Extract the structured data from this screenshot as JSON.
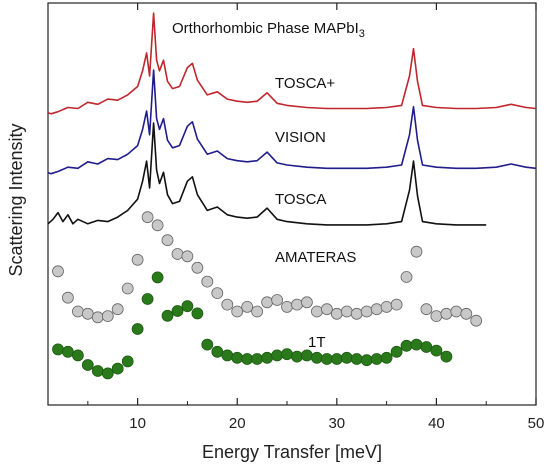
{
  "chart_data": {
    "type": "line",
    "title": "Orthorhombic  Phase MAPbI",
    "title_subscript": "3",
    "xlabel": "Energy Transfer [meV]",
    "ylabel": "Scattering Intensity",
    "xlim": [
      1,
      50
    ],
    "xticks": [
      10,
      20,
      30,
      40,
      50
    ],
    "grid": false,
    "legend": "none",
    "series": [
      {
        "name": "TOSCA+",
        "style": "line",
        "color": "#c0262d",
        "points": [
          [
            1,
            0.05
          ],
          [
            1.3,
            0.04
          ],
          [
            2,
            0.06
          ],
          [
            3,
            0.1
          ],
          [
            4,
            0.09
          ],
          [
            5,
            0.15
          ],
          [
            6,
            0.13
          ],
          [
            7,
            0.18
          ],
          [
            8,
            0.17
          ],
          [
            9,
            0.22
          ],
          [
            10,
            0.3
          ],
          [
            10.5,
            0.45
          ],
          [
            10.9,
            0.62
          ],
          [
            11.2,
            0.4
          ],
          [
            11.6,
            1.0
          ],
          [
            11.9,
            0.55
          ],
          [
            12.2,
            0.45
          ],
          [
            12.6,
            0.55
          ],
          [
            13,
            0.35
          ],
          [
            13.5,
            0.28
          ],
          [
            14.2,
            0.3
          ],
          [
            15,
            0.48
          ],
          [
            15.5,
            0.52
          ],
          [
            16,
            0.36
          ],
          [
            17,
            0.22
          ],
          [
            18,
            0.25
          ],
          [
            19,
            0.18
          ],
          [
            20,
            0.16
          ],
          [
            21,
            0.15
          ],
          [
            22,
            0.16
          ],
          [
            23,
            0.24
          ],
          [
            24,
            0.14
          ],
          [
            25,
            0.12
          ],
          [
            27,
            0.1
          ],
          [
            29,
            0.09
          ],
          [
            31,
            0.09
          ],
          [
            33,
            0.09
          ],
          [
            35,
            0.1
          ],
          [
            36.5,
            0.12
          ],
          [
            37.3,
            0.4
          ],
          [
            37.7,
            0.66
          ],
          [
            38.1,
            0.35
          ],
          [
            38.6,
            0.12
          ],
          [
            40,
            0.1
          ],
          [
            42,
            0.09
          ],
          [
            44,
            0.09
          ],
          [
            46,
            0.1
          ],
          [
            47.5,
            0.13
          ],
          [
            49,
            0.1
          ],
          [
            50,
            0.09
          ]
        ]
      },
      {
        "name": "VISION",
        "style": "line",
        "color": "#1f1d8a",
        "points": [
          [
            1,
            0.05
          ],
          [
            1.3,
            0.04
          ],
          [
            2,
            0.06
          ],
          [
            3,
            0.1
          ],
          [
            4,
            0.09
          ],
          [
            5,
            0.15
          ],
          [
            6,
            0.13
          ],
          [
            7,
            0.18
          ],
          [
            8,
            0.17
          ],
          [
            9,
            0.22
          ],
          [
            10,
            0.3
          ],
          [
            10.5,
            0.45
          ],
          [
            10.9,
            0.62
          ],
          [
            11.2,
            0.4
          ],
          [
            11.6,
            1.0
          ],
          [
            11.9,
            0.55
          ],
          [
            12.2,
            0.45
          ],
          [
            12.6,
            0.55
          ],
          [
            13,
            0.35
          ],
          [
            13.5,
            0.28
          ],
          [
            14.2,
            0.3
          ],
          [
            15,
            0.48
          ],
          [
            15.5,
            0.52
          ],
          [
            16,
            0.36
          ],
          [
            17,
            0.22
          ],
          [
            18,
            0.25
          ],
          [
            19,
            0.18
          ],
          [
            20,
            0.16
          ],
          [
            21,
            0.15
          ],
          [
            22,
            0.16
          ],
          [
            23,
            0.24
          ],
          [
            24,
            0.14
          ],
          [
            25,
            0.12
          ],
          [
            27,
            0.1
          ],
          [
            29,
            0.09
          ],
          [
            31,
            0.09
          ],
          [
            33,
            0.09
          ],
          [
            35,
            0.1
          ],
          [
            36.5,
            0.12
          ],
          [
            37.3,
            0.4
          ],
          [
            37.7,
            0.66
          ],
          [
            38.1,
            0.35
          ],
          [
            38.6,
            0.12
          ],
          [
            40,
            0.1
          ],
          [
            42,
            0.09
          ],
          [
            44,
            0.09
          ],
          [
            46,
            0.1
          ],
          [
            47.5,
            0.13
          ],
          [
            49,
            0.1
          ],
          [
            50,
            0.09
          ]
        ]
      },
      {
        "name": "TOSCA",
        "style": "line",
        "color": "#111111",
        "points": [
          [
            1,
            0.1
          ],
          [
            1.5,
            0.14
          ],
          [
            2,
            0.2
          ],
          [
            2.5,
            0.12
          ],
          [
            3,
            0.18
          ],
          [
            3.5,
            0.1
          ],
          [
            4,
            0.14
          ],
          [
            5,
            0.1
          ],
          [
            6,
            0.13
          ],
          [
            7,
            0.12
          ],
          [
            8,
            0.16
          ],
          [
            9,
            0.22
          ],
          [
            10,
            0.32
          ],
          [
            10.5,
            0.48
          ],
          [
            10.9,
            0.66
          ],
          [
            11.2,
            0.42
          ],
          [
            11.6,
            1.0
          ],
          [
            11.9,
            0.58
          ],
          [
            12.2,
            0.46
          ],
          [
            12.6,
            0.56
          ],
          [
            13,
            0.36
          ],
          [
            13.5,
            0.28
          ],
          [
            14.2,
            0.3
          ],
          [
            15,
            0.48
          ],
          [
            15.5,
            0.52
          ],
          [
            16,
            0.36
          ],
          [
            17,
            0.22
          ],
          [
            18,
            0.25
          ],
          [
            19,
            0.18
          ],
          [
            20,
            0.16
          ],
          [
            21,
            0.15
          ],
          [
            22,
            0.16
          ],
          [
            23,
            0.24
          ],
          [
            24,
            0.14
          ],
          [
            25,
            0.12
          ],
          [
            27,
            0.1
          ],
          [
            29,
            0.09
          ],
          [
            31,
            0.09
          ],
          [
            33,
            0.09
          ],
          [
            35,
            0.1
          ],
          [
            36.5,
            0.12
          ],
          [
            37.3,
            0.4
          ],
          [
            37.7,
            0.66
          ],
          [
            38.1,
            0.35
          ],
          [
            38.6,
            0.12
          ],
          [
            40,
            0.1
          ],
          [
            42,
            0.09
          ],
          [
            44,
            0.09
          ],
          [
            45,
            0.09
          ]
        ]
      },
      {
        "name": "AMATERAS",
        "style": "markers",
        "color": "#c8c8c8",
        "points": [
          [
            2,
            0.45
          ],
          [
            3,
            0.22
          ],
          [
            4,
            0.1
          ],
          [
            5,
            0.08
          ],
          [
            6,
            0.05
          ],
          [
            7,
            0.06
          ],
          [
            8,
            0.12
          ],
          [
            9,
            0.3
          ],
          [
            10,
            0.55
          ],
          [
            11,
            0.92
          ],
          [
            12,
            0.85
          ],
          [
            13,
            0.72
          ],
          [
            14,
            0.6
          ],
          [
            15,
            0.58
          ],
          [
            16,
            0.48
          ],
          [
            17,
            0.36
          ],
          [
            18,
            0.26
          ],
          [
            19,
            0.16
          ],
          [
            20,
            0.1
          ],
          [
            21,
            0.14
          ],
          [
            22,
            0.1
          ],
          [
            23,
            0.18
          ],
          [
            24,
            0.2
          ],
          [
            25,
            0.14
          ],
          [
            26,
            0.16
          ],
          [
            27,
            0.18
          ],
          [
            28,
            0.1
          ],
          [
            29,
            0.12
          ],
          [
            30,
            0.08
          ],
          [
            31,
            0.1
          ],
          [
            32,
            0.08
          ],
          [
            33,
            0.1
          ],
          [
            34,
            0.12
          ],
          [
            35,
            0.14
          ],
          [
            36,
            0.16
          ],
          [
            37,
            0.4
          ],
          [
            38,
            0.62
          ],
          [
            39,
            0.12
          ],
          [
            40,
            0.06
          ],
          [
            41,
            0.08
          ],
          [
            42,
            0.1
          ],
          [
            43,
            0.08
          ],
          [
            44,
            0.02
          ]
        ]
      },
      {
        "name": "1T",
        "style": "markers",
        "color": "#2a7a1b",
        "points": [
          [
            2,
            0.38
          ],
          [
            3,
            0.36
          ],
          [
            4,
            0.33
          ],
          [
            5,
            0.25
          ],
          [
            6,
            0.2
          ],
          [
            7,
            0.18
          ],
          [
            8,
            0.22
          ],
          [
            9,
            0.28
          ],
          [
            10,
            0.55
          ],
          [
            11,
            0.8
          ],
          [
            12,
            0.98
          ],
          [
            13,
            0.66
          ],
          [
            14,
            0.7
          ],
          [
            15,
            0.74
          ],
          [
            16,
            0.68
          ],
          [
            17,
            0.42
          ],
          [
            18,
            0.36
          ],
          [
            19,
            0.33
          ],
          [
            20,
            0.31
          ],
          [
            21,
            0.3
          ],
          [
            22,
            0.3
          ],
          [
            23,
            0.31
          ],
          [
            24,
            0.33
          ],
          [
            25,
            0.34
          ],
          [
            26,
            0.32
          ],
          [
            27,
            0.33
          ],
          [
            28,
            0.31
          ],
          [
            29,
            0.3
          ],
          [
            30,
            0.3
          ],
          [
            31,
            0.31
          ],
          [
            32,
            0.3
          ],
          [
            33,
            0.29
          ],
          [
            34,
            0.3
          ],
          [
            35,
            0.31
          ],
          [
            36,
            0.36
          ],
          [
            37,
            0.41
          ],
          [
            38,
            0.42
          ],
          [
            39,
            0.4
          ],
          [
            40,
            0.37
          ],
          [
            41,
            0.32
          ]
        ]
      }
    ]
  }
}
